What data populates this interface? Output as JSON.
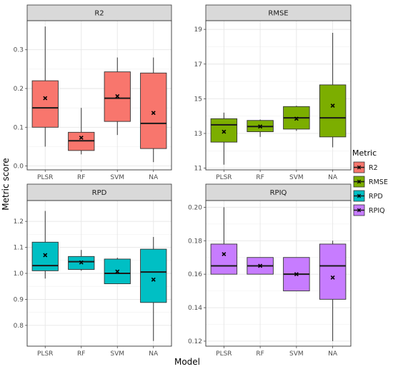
{
  "chart_data": {
    "type": "box",
    "xlabel": "Model",
    "ylabel": "Metric score",
    "legend": {
      "title": "Metric",
      "placement": "right",
      "entries": [
        {
          "label": "R2",
          "color": "#F8766D"
        },
        {
          "label": "RMSE",
          "color": "#7CAE00"
        },
        {
          "label": "RPD",
          "color": "#00BFC4"
        },
        {
          "label": "RPIQ",
          "color": "#C77CFF"
        }
      ]
    },
    "categories": [
      "PLSR",
      "RF",
      "SVM",
      "NA"
    ],
    "panels": [
      {
        "title": "R2",
        "color": "#F8766D",
        "ylim": [
          -0.01,
          0.375
        ],
        "yticks": [
          0.0,
          0.1,
          0.2,
          0.3
        ],
        "ytick_labels": [
          "0.0",
          "0.1",
          "0.2",
          "0.3"
        ],
        "boxes": [
          {
            "category": "PLSR",
            "min": 0.05,
            "q1": 0.1,
            "median": 0.15,
            "q3": 0.22,
            "max": 0.36,
            "mean": 0.175
          },
          {
            "category": "RF",
            "min": 0.03,
            "q1": 0.04,
            "median": 0.065,
            "q3": 0.087,
            "max": 0.15,
            "mean": 0.073
          },
          {
            "category": "SVM",
            "min": 0.08,
            "q1": 0.115,
            "median": 0.175,
            "q3": 0.243,
            "max": 0.28,
            "mean": 0.18
          },
          {
            "category": "NA",
            "min": 0.01,
            "q1": 0.045,
            "median": 0.11,
            "q3": 0.24,
            "max": 0.28,
            "mean": 0.137
          }
        ]
      },
      {
        "title": "RMSE",
        "color": "#7CAE00",
        "ylim": [
          10.9,
          19.5
        ],
        "yticks": [
          11,
          13,
          15,
          17,
          19
        ],
        "ytick_labels": [
          "11",
          "13",
          "15",
          "17",
          "19"
        ],
        "boxes": [
          {
            "category": "PLSR",
            "min": 11.2,
            "q1": 12.5,
            "median": 13.5,
            "q3": 13.85,
            "max": 14.2,
            "mean": 13.1
          },
          {
            "category": "RF",
            "min": 12.8,
            "q1": 13.1,
            "median": 13.4,
            "q3": 13.75,
            "max": 13.8,
            "mean": 13.4
          },
          {
            "category": "SVM",
            "min": 13.15,
            "q1": 13.25,
            "median": 13.9,
            "q3": 14.55,
            "max": 14.6,
            "mean": 13.85
          },
          {
            "category": "NA",
            "min": 12.2,
            "q1": 12.8,
            "median": 13.9,
            "q3": 15.8,
            "max": 18.8,
            "mean": 14.6
          }
        ]
      },
      {
        "title": "RPD",
        "color": "#00BFC4",
        "ylim": [
          0.72,
          1.28
        ],
        "yticks": [
          0.8,
          0.9,
          1.0,
          1.1,
          1.2
        ],
        "ytick_labels": [
          "0.8",
          "0.9",
          "1.0",
          "1.1",
          "1.2"
        ],
        "boxes": [
          {
            "category": "PLSR",
            "min": 0.98,
            "q1": 1.01,
            "median": 1.03,
            "q3": 1.12,
            "max": 1.24,
            "mean": 1.07
          },
          {
            "category": "RF",
            "min": 1.01,
            "q1": 1.015,
            "median": 1.045,
            "q3": 1.065,
            "max": 1.09,
            "mean": 1.042
          },
          {
            "category": "SVM",
            "min": 0.96,
            "q1": 0.96,
            "median": 1.0,
            "q3": 1.055,
            "max": 1.06,
            "mean": 1.007
          },
          {
            "category": "NA",
            "min": 0.74,
            "q1": 0.888,
            "median": 1.005,
            "q3": 1.093,
            "max": 1.14,
            "mean": 0.976
          }
        ]
      },
      {
        "title": "RPIQ",
        "color": "#C77CFF",
        "ylim": [
          0.117,
          0.204
        ],
        "yticks": [
          0.12,
          0.14,
          0.16,
          0.18,
          0.2
        ],
        "ytick_labels": [
          "0.12",
          "0.14",
          "0.16",
          "0.18",
          "0.20"
        ],
        "boxes": [
          {
            "category": "PLSR",
            "min": 0.16,
            "q1": 0.16,
            "median": 0.165,
            "q3": 0.178,
            "max": 0.2,
            "mean": 0.172
          },
          {
            "category": "RF",
            "min": 0.16,
            "q1": 0.16,
            "median": 0.165,
            "q3": 0.17,
            "max": 0.17,
            "mean": 0.165
          },
          {
            "category": "SVM",
            "min": 0.15,
            "q1": 0.15,
            "median": 0.16,
            "q3": 0.17,
            "max": 0.17,
            "mean": 0.16
          },
          {
            "category": "NA",
            "min": 0.12,
            "q1": 0.145,
            "median": 0.165,
            "q3": 0.178,
            "max": 0.18,
            "mean": 0.158
          }
        ]
      }
    ]
  }
}
